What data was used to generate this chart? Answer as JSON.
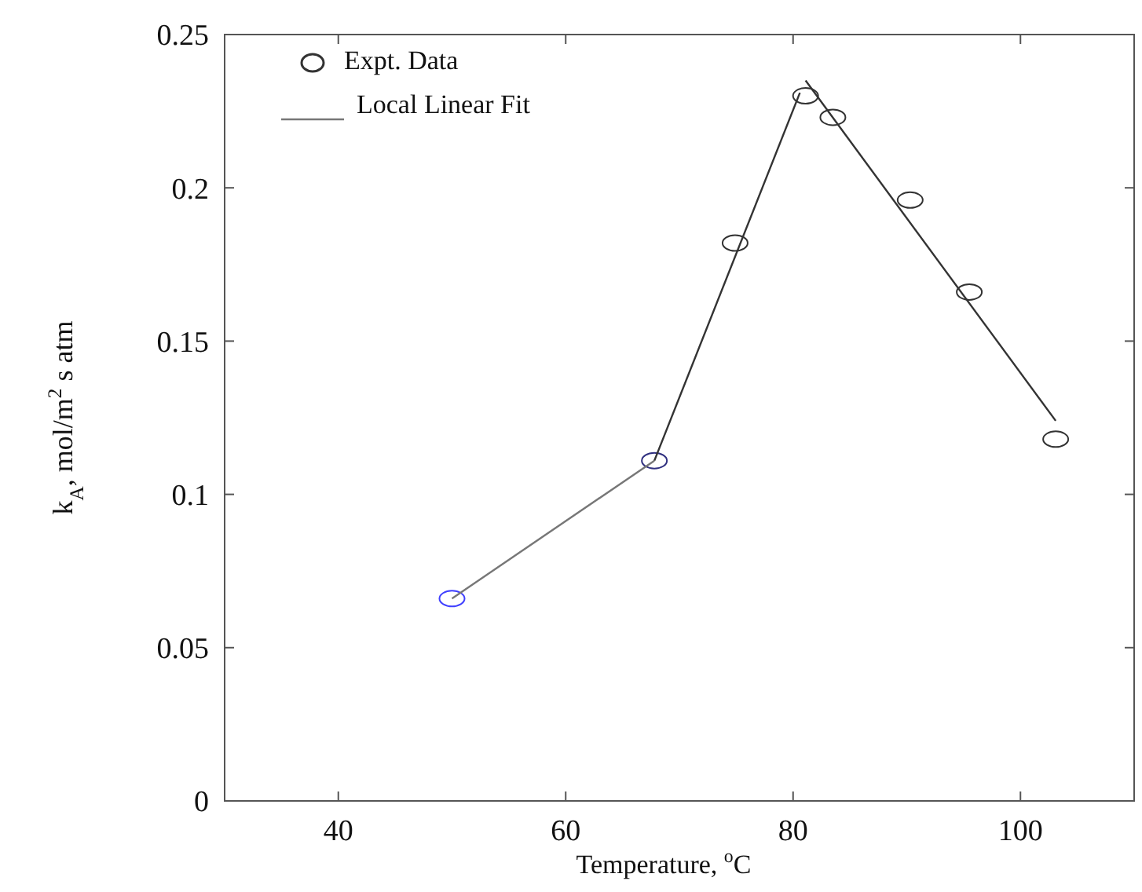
{
  "chart_data": {
    "type": "scatter",
    "xlabel": "Temperature, $^{o}$C",
    "ylabel": "k$_{A}$, mol/m$^{2}$ s atm",
    "xlim": [
      30,
      110
    ],
    "xticks": [
      40,
      60,
      80,
      100
    ],
    "ylim": [
      0,
      0.25
    ],
    "yticks": [
      0,
      0.05,
      {
        "value": 0.1,
        "label": "0.1"
      },
      0.15,
      {
        "value": 0.2,
        "label": "0.2"
      },
      0.25
    ],
    "grid": false,
    "legend": "top left",
    "series": [
      {
        "name": "Expt. Data",
        "marker": "circle",
        "x": [
          50,
          67.8,
          74.9,
          81.1,
          83.5,
          90.3,
          95.5,
          103.1
        ],
        "values": [
          0.066,
          0.111,
          0.182,
          0.23,
          0.223,
          0.196,
          0.166,
          0.118
        ],
        "colors": [
          "#4040ff",
          "#303080",
          "#333333",
          "#333333",
          "#333333",
          "#333333",
          "#333333",
          "#333333"
        ],
        "color": "#333333"
      },
      {
        "name": "Local Linear Fit",
        "type": "line",
        "x": [
          50,
          67.8
        ],
        "values": [
          0.066,
          0.111
        ],
        "color": "#777777",
        "line_style": "solid",
        "marker": "none"
      },
      {
        "type": "line",
        "x": [
          67.8,
          80.6
        ],
        "values": [
          0.111,
          0.231
        ],
        "color": "#333333",
        "line_style": "solid",
        "marker": "none"
      },
      {
        "type": "line",
        "x": [
          81.1,
          103.1
        ],
        "values": [
          0.235,
          0.124
        ],
        "color": "#333333",
        "line_style": "solid",
        "marker": "none"
      }
    ]
  }
}
